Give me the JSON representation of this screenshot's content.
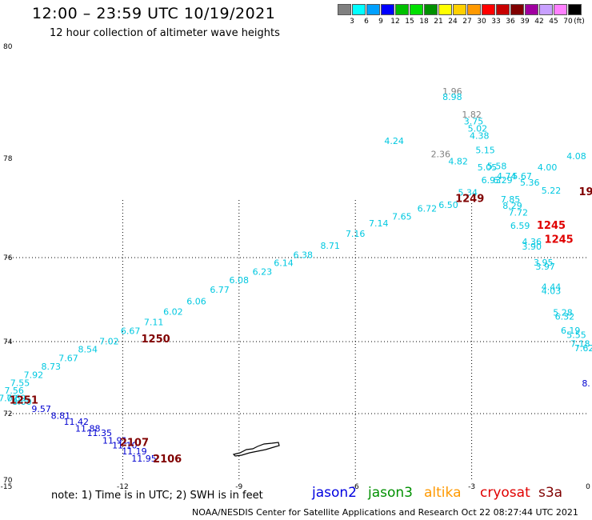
{
  "header": {
    "title": "12:00 – 23:59 UTC 10/19/2021",
    "subtitle": "12 hour collection of altimeter wave heights"
  },
  "colorbar": {
    "unit": "(ft)",
    "bins": [
      {
        "label": "3",
        "color": "#808080"
      },
      {
        "label": "6",
        "color": "#00ffff"
      },
      {
        "label": "9",
        "color": "#00a0ff"
      },
      {
        "label": "12",
        "color": "#0000ff"
      },
      {
        "label": "15",
        "color": "#00c000"
      },
      {
        "label": "18",
        "color": "#00e000"
      },
      {
        "label": "21",
        "color": "#009000"
      },
      {
        "label": "24",
        "color": "#ffff00"
      },
      {
        "label": "27",
        "color": "#ffd000"
      },
      {
        "label": "30",
        "color": "#ff9900"
      },
      {
        "label": "33",
        "color": "#ff0000"
      },
      {
        "label": "36",
        "color": "#c80000"
      },
      {
        "label": "39",
        "color": "#800000"
      },
      {
        "label": "42",
        "color": "#a000a0"
      },
      {
        "label": "45",
        "color": "#c8a0ff"
      },
      {
        "label": "70",
        "color": "#ff80ff"
      },
      {
        "label": "",
        "color": "#000000"
      }
    ]
  },
  "axes": {
    "lon_ticks": [
      "-15",
      "-12",
      "-9",
      "-6",
      "-3",
      "0"
    ],
    "lat_ticks": [
      "80",
      "78",
      "76",
      "74",
      "72",
      "70"
    ]
  },
  "observations": [
    {
      "text": "1.96",
      "color": "#808080",
      "lon": -3.5,
      "lat": 79.14
    },
    {
      "text": "8.98",
      "color": "#00c8e0",
      "lon": -3.5,
      "lat": 79.04
    },
    {
      "text": "1.82",
      "color": "#808080",
      "lon": -3.0,
      "lat": 78.73
    },
    {
      "text": "3.75",
      "color": "#00c8e0",
      "lon": -2.95,
      "lat": 78.61
    },
    {
      "text": "5.02",
      "color": "#00c8e0",
      "lon": -2.85,
      "lat": 78.48
    },
    {
      "text": "4.38",
      "color": "#00c8e0",
      "lon": -2.8,
      "lat": 78.35
    },
    {
      "text": "5.15",
      "color": "#00c8e0",
      "lon": -2.65,
      "lat": 78.09
    },
    {
      "text": "4.24",
      "color": "#00c8e0",
      "lon": -5.0,
      "lat": 78.26
    },
    {
      "text": "2.36",
      "color": "#808080",
      "lon": -3.8,
      "lat": 78.02
    },
    {
      "text": "4.82",
      "color": "#00c8e0",
      "lon": -3.35,
      "lat": 77.88
    },
    {
      "text": "5.05",
      "color": "#00c8e0",
      "lon": -2.6,
      "lat": 77.76
    },
    {
      "text": "5.58",
      "color": "#00c8e0",
      "lon": -2.35,
      "lat": 77.78
    },
    {
      "text": "4.74",
      "color": "#00c8e0",
      "lon": -2.1,
      "lat": 77.58
    },
    {
      "text": "5.67",
      "color": "#00c8e0",
      "lon": -1.7,
      "lat": 77.58
    },
    {
      "text": "4.00",
      "color": "#00c8e0",
      "lon": -1.05,
      "lat": 77.76
    },
    {
      "text": "4.08",
      "color": "#00c8e0",
      "lon": -0.3,
      "lat": 77.98
    },
    {
      "text": "6.93",
      "color": "#00c8e0",
      "lon": -2.5,
      "lat": 77.5
    },
    {
      "text": "6.29",
      "color": "#00c8e0",
      "lon": -2.2,
      "lat": 77.5
    },
    {
      "text": "5.36",
      "color": "#00c8e0",
      "lon": -1.5,
      "lat": 77.45
    },
    {
      "text": "5.34",
      "color": "#00c8e0",
      "lon": -3.1,
      "lat": 77.25
    },
    {
      "text": "5.22",
      "color": "#00c8e0",
      "lon": -0.95,
      "lat": 77.29
    },
    {
      "text": "6.50",
      "color": "#00c8e0",
      "lon": -3.6,
      "lat": 77.0
    },
    {
      "text": "7.85",
      "color": "#00c8e0",
      "lon": -2.0,
      "lat": 77.11
    },
    {
      "text": "8.29",
      "color": "#00c8e0",
      "lon": -1.95,
      "lat": 76.98
    },
    {
      "text": "7.72",
      "color": "#00c8e0",
      "lon": -1.8,
      "lat": 76.85
    },
    {
      "text": "6.72",
      "color": "#00c8e0",
      "lon": -4.15,
      "lat": 76.93
    },
    {
      "text": "7.65",
      "color": "#00c8e0",
      "lon": -4.8,
      "lat": 76.77
    },
    {
      "text": "7.14",
      "color": "#00c8e0",
      "lon": -5.4,
      "lat": 76.63
    },
    {
      "text": "6.59",
      "color": "#00c8e0",
      "lon": -1.75,
      "lat": 76.58
    },
    {
      "text": "7.16",
      "color": "#00c8e0",
      "lon": -6.0,
      "lat": 76.42
    },
    {
      "text": "4.36",
      "color": "#00c8e0",
      "lon": -1.45,
      "lat": 76.26
    },
    {
      "text": "3.90",
      "color": "#00c8e0",
      "lon": -1.45,
      "lat": 76.16
    },
    {
      "text": "8.71",
      "color": "#00c8e0",
      "lon": -6.65,
      "lat": 76.18
    },
    {
      "text": "6.38",
      "color": "#00c8e0",
      "lon": -7.35,
      "lat": 75.99
    },
    {
      "text": "3.95",
      "color": "#00c8e0",
      "lon": -1.15,
      "lat": 75.81
    },
    {
      "text": "3.97",
      "color": "#00c8e0",
      "lon": -1.1,
      "lat": 75.71
    },
    {
      "text": "6.14",
      "color": "#00c8e0",
      "lon": -7.85,
      "lat": 75.8
    },
    {
      "text": "6.23",
      "color": "#00c8e0",
      "lon": -8.4,
      "lat": 75.59
    },
    {
      "text": "6.08",
      "color": "#00c8e0",
      "lon": -9.0,
      "lat": 75.39
    },
    {
      "text": "4.44",
      "color": "#00c8e0",
      "lon": -0.95,
      "lat": 75.23
    },
    {
      "text": "4.03",
      "color": "#00c8e0",
      "lon": -0.95,
      "lat": 75.13
    },
    {
      "text": "6.77",
      "color": "#00c8e0",
      "lon": -9.5,
      "lat": 75.16
    },
    {
      "text": "6.06",
      "color": "#00c8e0",
      "lon": -10.1,
      "lat": 74.89
    },
    {
      "text": "5.28",
      "color": "#00c8e0",
      "lon": -0.65,
      "lat": 74.62
    },
    {
      "text": "6.32",
      "color": "#00c8e0",
      "lon": -0.6,
      "lat": 74.52
    },
    {
      "text": "6.02",
      "color": "#00c8e0",
      "lon": -10.7,
      "lat": 74.64
    },
    {
      "text": "7.11",
      "color": "#00c8e0",
      "lon": -11.2,
      "lat": 74.39
    },
    {
      "text": "6.19",
      "color": "#00c8e0",
      "lon": -0.45,
      "lat": 74.19
    },
    {
      "text": "5.55",
      "color": "#00c8e0",
      "lon": -0.3,
      "lat": 74.09
    },
    {
      "text": "6.67",
      "color": "#00c8e0",
      "lon": -11.8,
      "lat": 74.18
    },
    {
      "text": "7.02",
      "color": "#00c8e0",
      "lon": -12.35,
      "lat": 73.92
    },
    {
      "text": "7.18",
      "color": "#00c8e0",
      "lon": -0.2,
      "lat": 73.86
    },
    {
      "text": "7.62",
      "color": "#00c8e0",
      "lon": -0.1,
      "lat": 73.73
    },
    {
      "text": "8.54",
      "color": "#00c8e0",
      "lon": -12.9,
      "lat": 73.7
    },
    {
      "text": "7.67",
      "color": "#00c8e0",
      "lon": -13.4,
      "lat": 73.46
    },
    {
      "text": "8.73",
      "color": "#00c8e0",
      "lon": -13.85,
      "lat": 73.22
    },
    {
      "text": "7.92",
      "color": "#00c8e0",
      "lon": -14.3,
      "lat": 72.99
    },
    {
      "text": "7.55",
      "color": "#00c8e0",
      "lon": -14.65,
      "lat": 72.77
    },
    {
      "text": "7.56",
      "color": "#00c8e0",
      "lon": -14.8,
      "lat": 72.56
    },
    {
      "text": "7.02",
      "color": "#00c8e0",
      "lon": -14.95,
      "lat": 72.35
    },
    {
      "text": "7.69",
      "color": "#00c8e0",
      "lon": -14.75,
      "lat": 72.35
    },
    {
      "text": "8.00",
      "color": "#00c8e0",
      "lon": -14.6,
      "lat": 72.25
    },
    {
      "text": "9.57",
      "color": "#0000d0",
      "lon": -14.1,
      "lat": 72.05
    },
    {
      "text": "8.81",
      "color": "#0000d0",
      "lon": -13.6,
      "lat": 71.84
    },
    {
      "text": "11.42",
      "color": "#0000d0",
      "lon": -13.2,
      "lat": 71.66
    },
    {
      "text": "11.88",
      "color": "#0000d0",
      "lon": -12.9,
      "lat": 71.46
    },
    {
      "text": "11.35",
      "color": "#0000d0",
      "lon": -12.6,
      "lat": 71.32
    },
    {
      "text": "11.91",
      "color": "#0000d0",
      "lon": -12.2,
      "lat": 71.1
    },
    {
      "text": "11.10",
      "color": "#0000d0",
      "lon": -11.95,
      "lat": 70.95
    },
    {
      "text": "11.19",
      "color": "#0000d0",
      "lon": -11.7,
      "lat": 70.77
    },
    {
      "text": "11.95",
      "color": "#0000d0",
      "lon": -11.45,
      "lat": 70.56
    },
    {
      "text": "8.",
      "color": "#0000d0",
      "lon": -0.05,
      "lat": 72.76
    }
  ],
  "pass_labels": [
    {
      "text": "1249",
      "color": "#800000",
      "lon": -3.05,
      "lat": 77.12
    },
    {
      "text": "1245",
      "color": "#e00000",
      "lon": -0.95,
      "lat": 76.58
    },
    {
      "text": "1245",
      "color": "#e00000",
      "lon": -0.75,
      "lat": 76.3
    },
    {
      "text": "19",
      "color": "#800000",
      "lon": -0.05,
      "lat": 77.26
    },
    {
      "text": "1250",
      "color": "#800000",
      "lon": -11.15,
      "lat": 73.98
    },
    {
      "text": "1251",
      "color": "#800000",
      "lon": -14.55,
      "lat": 72.28
    },
    {
      "text": "2107",
      "color": "#800000",
      "lon": -11.7,
      "lat": 71.02
    },
    {
      "text": "2106",
      "color": "#800000",
      "lon": -10.85,
      "lat": 70.53
    }
  ],
  "footer": {
    "note": "note:  1) Time is in UTC;  2) SWH is in feet",
    "satellites": [
      {
        "name": "jason2",
        "color": "#0000e0"
      },
      {
        "name": "jason3",
        "color": "#009000"
      },
      {
        "name": "altika",
        "color": "#ff9900"
      },
      {
        "name": "cryosat",
        "color": "#e00000"
      },
      {
        "name": "s3a",
        "color": "#800000"
      }
    ],
    "credit": "NOAA/NESDIS Center for Satellite Applications and Research      Oct 22 08:27:44 UTC 2021"
  }
}
